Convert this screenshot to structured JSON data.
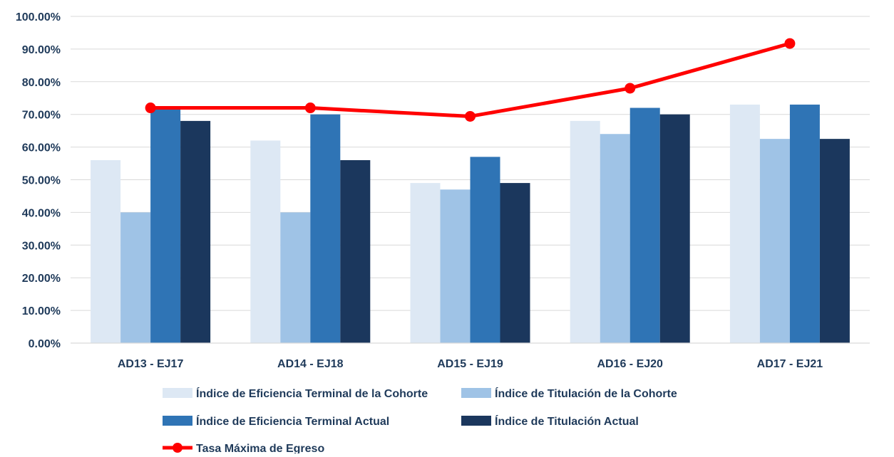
{
  "chart_data": {
    "type": "bar",
    "categories": [
      "AD13 - EJ17",
      "AD14 - EJ18",
      "AD15 - EJ19",
      "AD16 - EJ20",
      "AD17 - EJ21"
    ],
    "series": [
      {
        "name": "Índice de Eficiencia Terminal de la Cohorte",
        "type": "bar",
        "color": "#dde8f4",
        "values": [
          56.0,
          62.0,
          49.0,
          68.0,
          73.0
        ]
      },
      {
        "name": "Índice de Titulación de la Cohorte",
        "type": "bar",
        "color": "#9fc3e6",
        "values": [
          40.0,
          40.0,
          47.0,
          64.0,
          62.5
        ]
      },
      {
        "name": "Índice de Eficiencia Terminal Actual",
        "type": "bar",
        "color": "#2f74b5",
        "values": [
          72.0,
          70.0,
          57.0,
          72.0,
          73.0
        ]
      },
      {
        "name": "Índice de Titulación Actual",
        "type": "bar",
        "color": "#1b375d",
        "values": [
          68.0,
          56.0,
          49.0,
          70.0,
          62.5
        ]
      },
      {
        "name": "Tasa Máxima de Egreso",
        "type": "line",
        "color": "#ff0000",
        "values": [
          72.0,
          72.0,
          69.4,
          78.0,
          91.7
        ]
      }
    ],
    "ylim": [
      0,
      100
    ],
    "yticks": [
      "0.00%",
      "10.00%",
      "20.00%",
      "30.00%",
      "40.00%",
      "50.00%",
      "60.00%",
      "70.00%",
      "80.00%",
      "90.00%",
      "100.00%"
    ],
    "grid": true,
    "legend_position": "bottom",
    "title": "",
    "xlabel": "",
    "ylabel": ""
  }
}
